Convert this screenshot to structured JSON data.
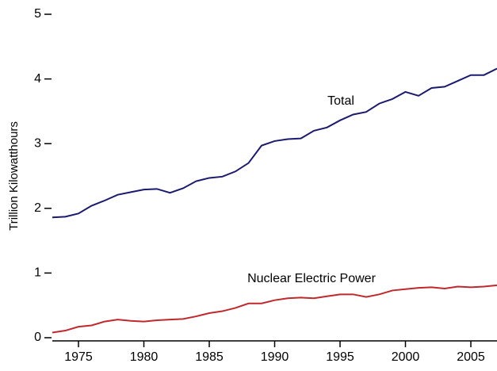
{
  "chart_data": {
    "type": "line",
    "y_label": "Trillion Kilowatthours",
    "x": [
      1973,
      1974,
      1975,
      1976,
      1977,
      1978,
      1979,
      1980,
      1981,
      1982,
      1983,
      1984,
      1985,
      1986,
      1987,
      1988,
      1989,
      1990,
      1991,
      1992,
      1993,
      1994,
      1995,
      1996,
      1997,
      1998,
      1999,
      2000,
      2001,
      2002,
      2003,
      2004,
      2005,
      2006,
      2007
    ],
    "series": [
      {
        "name": "Total",
        "color": "#1a1a6e",
        "values": [
          1.86,
          1.87,
          1.92,
          2.04,
          2.12,
          2.21,
          2.25,
          2.29,
          2.3,
          2.24,
          2.31,
          2.42,
          2.47,
          2.49,
          2.57,
          2.7,
          2.97,
          3.04,
          3.07,
          3.08,
          3.2,
          3.25,
          3.36,
          3.45,
          3.49,
          3.62,
          3.69,
          3.8,
          3.74,
          3.86,
          3.88,
          3.97,
          4.06,
          4.06,
          4.16
        ]
      },
      {
        "name": "Nuclear Electric Power",
        "color": "#c0282b",
        "values": [
          0.08,
          0.11,
          0.17,
          0.19,
          0.25,
          0.28,
          0.26,
          0.25,
          0.27,
          0.28,
          0.29,
          0.33,
          0.38,
          0.41,
          0.46,
          0.53,
          0.53,
          0.58,
          0.61,
          0.62,
          0.61,
          0.64,
          0.67,
          0.67,
          0.63,
          0.67,
          0.73,
          0.75,
          0.77,
          0.78,
          0.76,
          0.79,
          0.78,
          0.79,
          0.81
        ]
      }
    ],
    "xlim": [
      1973,
      2007
    ],
    "xticks": [
      1975,
      1980,
      1985,
      1990,
      1995,
      2000,
      2005
    ],
    "ylim": [
      0,
      5
    ],
    "yticks": [
      0,
      1,
      2,
      3,
      4,
      5
    ]
  }
}
